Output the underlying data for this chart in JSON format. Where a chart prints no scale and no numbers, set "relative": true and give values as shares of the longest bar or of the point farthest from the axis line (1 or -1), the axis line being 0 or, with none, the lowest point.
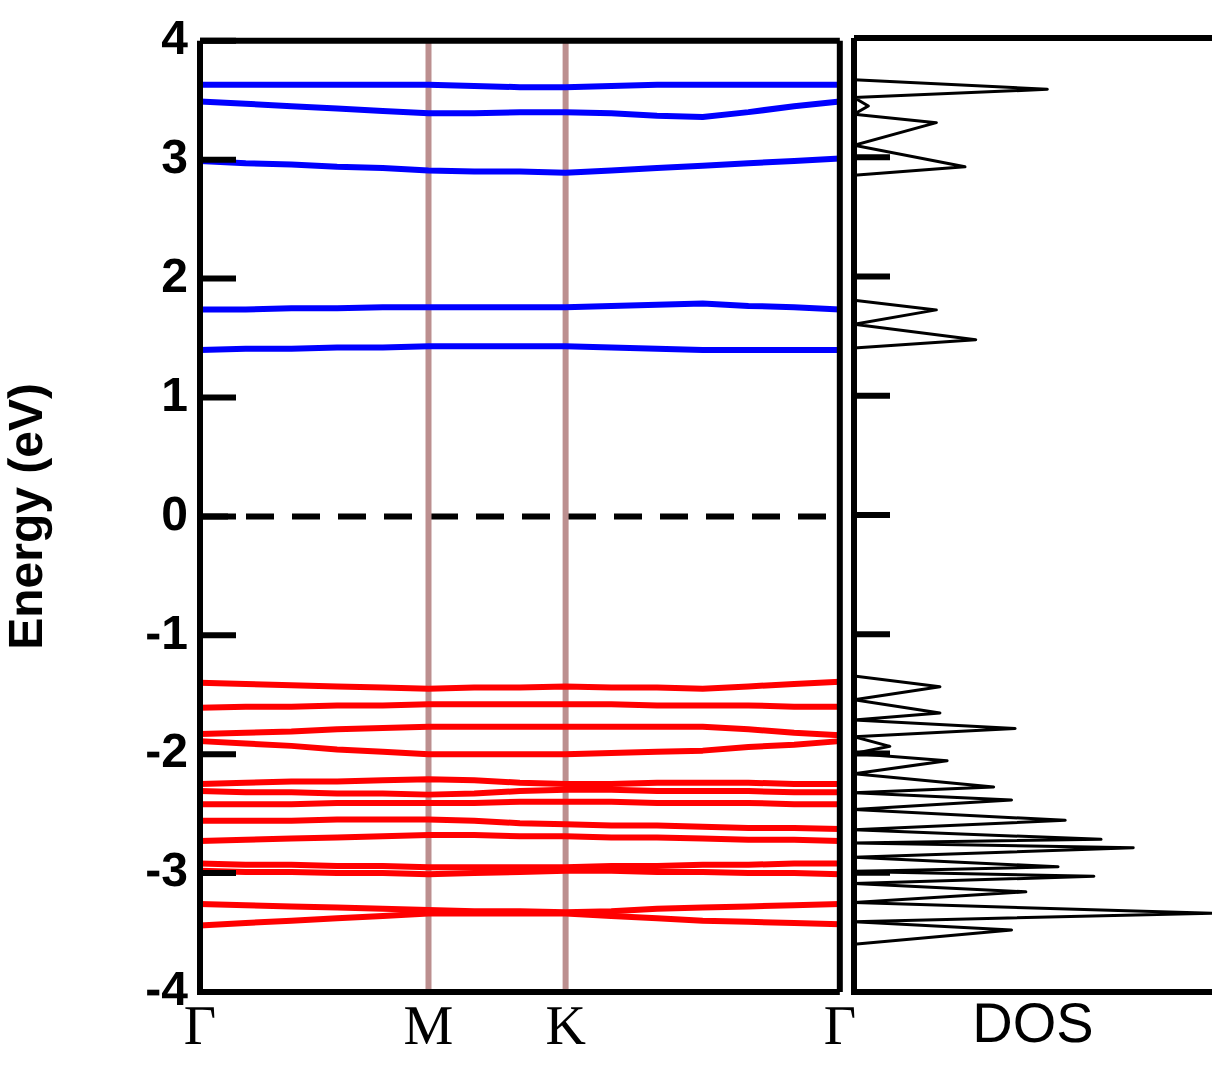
{
  "chart_data": [
    {
      "type": "line",
      "ylabel": "Energy (eV)",
      "categories": [
        "Γ",
        null,
        null,
        null,
        null,
        "M",
        null,
        null,
        "K",
        null,
        null,
        null,
        null,
        null,
        "Γ"
      ],
      "ylim": [
        -4,
        4
      ],
      "yticks": [
        -4,
        -3,
        -2,
        -1,
        0,
        1,
        2,
        3,
        4
      ],
      "grid": false,
      "legend": false,
      "marker": "none",
      "line_style": "solid",
      "series": [
        {
          "color": "#0000ff",
          "values": [
            3.63,
            3.63,
            3.63,
            3.63,
            3.63,
            3.63,
            3.62,
            3.61,
            3.61,
            3.62,
            3.63,
            3.63,
            3.63,
            3.63,
            3.63
          ]
        },
        {
          "color": "#0000ff",
          "values": [
            3.49,
            3.47,
            3.45,
            3.43,
            3.41,
            3.39,
            3.39,
            3.4,
            3.4,
            3.39,
            3.37,
            3.36,
            3.4,
            3.45,
            3.49
          ]
        },
        {
          "color": "#0000ff",
          "values": [
            2.99,
            2.97,
            2.96,
            2.94,
            2.93,
            2.91,
            2.9,
            2.9,
            2.89,
            2.91,
            2.93,
            2.95,
            2.97,
            2.99,
            3.01
          ]
        },
        {
          "color": "#0000ff",
          "values": [
            1.74,
            1.74,
            1.75,
            1.75,
            1.76,
            1.76,
            1.76,
            1.76,
            1.76,
            1.77,
            1.78,
            1.79,
            1.77,
            1.76,
            1.74
          ]
        },
        {
          "color": "#0000ff",
          "values": [
            1.4,
            1.41,
            1.41,
            1.42,
            1.42,
            1.43,
            1.43,
            1.43,
            1.43,
            1.42,
            1.41,
            1.4,
            1.4,
            1.4,
            1.4
          ]
        },
        {
          "color": "#ff0000",
          "values": [
            -1.4,
            -1.41,
            -1.42,
            -1.43,
            -1.44,
            -1.45,
            -1.44,
            -1.44,
            -1.43,
            -1.44,
            -1.44,
            -1.45,
            -1.43,
            -1.41,
            -1.39
          ]
        },
        {
          "color": "#ff0000",
          "values": [
            -1.61,
            -1.6,
            -1.6,
            -1.59,
            -1.59,
            -1.58,
            -1.58,
            -1.58,
            -1.58,
            -1.58,
            -1.59,
            -1.59,
            -1.59,
            -1.6,
            -1.6
          ]
        },
        {
          "color": "#ff0000",
          "values": [
            -1.83,
            -1.82,
            -1.81,
            -1.79,
            -1.78,
            -1.77,
            -1.77,
            -1.77,
            -1.77,
            -1.77,
            -1.77,
            -1.77,
            -1.79,
            -1.82,
            -1.84
          ]
        },
        {
          "color": "#ff0000",
          "values": [
            -1.89,
            -1.91,
            -1.93,
            -1.96,
            -1.98,
            -2.0,
            -2.0,
            -2.0,
            -2.0,
            -1.99,
            -1.98,
            -1.97,
            -1.94,
            -1.92,
            -1.89
          ]
        },
        {
          "color": "#ff0000",
          "values": [
            -2.25,
            -2.24,
            -2.23,
            -2.23,
            -2.22,
            -2.21,
            -2.22,
            -2.24,
            -2.25,
            -2.25,
            -2.24,
            -2.24,
            -2.24,
            -2.25,
            -2.25
          ]
        },
        {
          "color": "#ff0000",
          "values": [
            -2.31,
            -2.32,
            -2.32,
            -2.33,
            -2.33,
            -2.34,
            -2.33,
            -2.31,
            -2.3,
            -2.3,
            -2.31,
            -2.31,
            -2.31,
            -2.32,
            -2.32
          ]
        },
        {
          "color": "#ff0000",
          "values": [
            -2.42,
            -2.42,
            -2.42,
            -2.41,
            -2.41,
            -2.41,
            -2.41,
            -2.4,
            -2.4,
            -2.4,
            -2.41,
            -2.41,
            -2.41,
            -2.42,
            -2.42
          ]
        },
        {
          "color": "#ff0000",
          "values": [
            -2.56,
            -2.56,
            -2.56,
            -2.55,
            -2.55,
            -2.55,
            -2.56,
            -2.58,
            -2.59,
            -2.6,
            -2.6,
            -2.61,
            -2.62,
            -2.62,
            -2.63
          ]
        },
        {
          "color": "#ff0000",
          "values": [
            -2.73,
            -2.72,
            -2.71,
            -2.7,
            -2.69,
            -2.68,
            -2.68,
            -2.69,
            -2.69,
            -2.7,
            -2.7,
            -2.71,
            -2.72,
            -2.72,
            -2.73
          ]
        },
        {
          "color": "#ff0000",
          "values": [
            -2.92,
            -2.93,
            -2.93,
            -2.94,
            -2.94,
            -2.95,
            -2.95,
            -2.95,
            -2.95,
            -2.94,
            -2.94,
            -2.93,
            -2.93,
            -2.92,
            -2.92
          ]
        },
        {
          "color": "#ff0000",
          "values": [
            -2.98,
            -2.99,
            -2.99,
            -3.0,
            -3.0,
            -3.01,
            -3.0,
            -2.99,
            -2.98,
            -2.98,
            -2.99,
            -2.99,
            -3.0,
            -3.0,
            -3.01
          ]
        },
        {
          "color": "#ff0000",
          "values": [
            -3.26,
            -3.27,
            -3.28,
            -3.29,
            -3.3,
            -3.31,
            -3.32,
            -3.32,
            -3.33,
            -3.32,
            -3.3,
            -3.29,
            -3.28,
            -3.27,
            -3.26
          ]
        },
        {
          "color": "#ff0000",
          "values": [
            -3.44,
            -3.42,
            -3.4,
            -3.38,
            -3.36,
            -3.34,
            -3.34,
            -3.34,
            -3.34,
            -3.36,
            -3.38,
            -3.4,
            -3.41,
            -3.42,
            -3.43
          ]
        }
      ],
      "ref_lines": [
        {
          "axis": "y",
          "value": 0,
          "color": "#000000",
          "line_style": "dashed"
        },
        {
          "axis": "x",
          "value": "M",
          "color": "#bc8f8f",
          "line_style": "solid"
        },
        {
          "axis": "x",
          "value": "K",
          "color": "#bc8f8f",
          "line_style": "solid"
        }
      ]
    },
    {
      "type": "line",
      "orientation": "horizontal",
      "relative": true,
      "xlabel": "DOS",
      "ylim": [
        -4,
        4
      ],
      "yticks": [
        -4,
        -3,
        -2,
        -1,
        0,
        1,
        2,
        3,
        4
      ],
      "tick_labels": false,
      "grid": false,
      "legend": false,
      "marker": "none",
      "line_style": "solid",
      "x": [
        -3.6,
        -3.48,
        -3.41,
        -3.34,
        -3.25,
        -3.16,
        -3.09,
        -3.03,
        -2.99,
        -2.95,
        -2.87,
        -2.79,
        -2.75,
        -2.72,
        -2.64,
        -2.56,
        -2.47,
        -2.39,
        -2.33,
        -2.28,
        -2.17,
        -2.06,
        -2.0,
        -1.94,
        -1.86,
        -1.79,
        -1.72,
        -1.66,
        -1.55,
        -1.44,
        -1.35,
        1.4,
        1.47,
        1.6,
        1.72,
        1.8,
        2.85,
        2.92,
        3.1,
        3.29,
        3.36,
        3.43,
        3.5,
        3.57,
        3.65
      ],
      "series": [
        {
          "color": "#000000",
          "values": [
            0,
            0.44,
            0,
            1,
            0,
            0.48,
            0,
            0.67,
            0,
            0.57,
            0,
            0.78,
            0,
            0.69,
            0,
            0.59,
            0,
            0.44,
            0,
            0.39,
            0,
            0.26,
            0,
            0.1,
            0,
            0.45,
            0,
            0.24,
            0,
            0.24,
            0,
            0,
            0.34,
            0,
            0.23,
            0,
            0,
            0.31,
            0,
            0.23,
            0,
            0.04,
            0,
            0.54,
            0
          ]
        }
      ]
    }
  ]
}
